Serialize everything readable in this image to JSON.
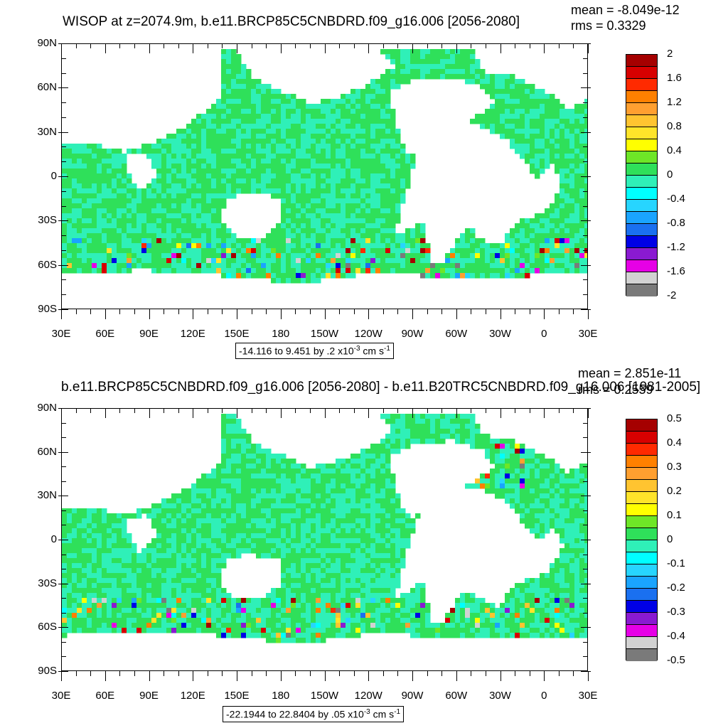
{
  "panels": [
    {
      "title": "WISOP at z=2074.9m, b.e11.BRCP85C5CNBDRD.f09_g16.006 [2056-2080]",
      "mean_text": "mean = -8.049e-12",
      "rms_text": "rms = 0.3329",
      "range_main": "-14.116 to 9.451 by .2 x10",
      "range_exp": "-3",
      "range_unit": " cm s",
      "range_unit_exp": "-1",
      "colorbar_labels": [
        "2",
        "1.6",
        "1.2",
        "0.8",
        "0.4",
        "0",
        "-0.4",
        "-0.8",
        "-1.2",
        "-1.6",
        "-2"
      ]
    },
    {
      "title": "b.e11.BRCP85C5CNBDRD.f09_g16.006 [2056-2080] - b.e11.B20TRC5CNBDRD.f09_g16.006 [1981-2005]",
      "mean_text": "mean = 2.851e-11",
      "rms_text": "rms = 0.2559",
      "range_main": "-22.1944 to 22.8404 by .05 x10",
      "range_exp": "-3",
      "range_unit": " cm s",
      "range_unit_exp": "-1",
      "colorbar_labels": [
        "0.5",
        "0.4",
        "0.3",
        "0.2",
        "0.1",
        "0",
        "-0.1",
        "-0.2",
        "-0.3",
        "-0.4",
        "-0.5"
      ]
    }
  ],
  "lat_labels": [
    "90N",
    "60N",
    "30N",
    "0",
    "30S",
    "60S",
    "90S"
  ],
  "lon_labels": [
    "30E",
    "60E",
    "90E",
    "120E",
    "150E",
    "180",
    "150W",
    "120W",
    "90W",
    "60W",
    "30W",
    "0",
    "30E"
  ],
  "colorbar_colors": [
    "#a50000",
    "#d70000",
    "#ff2a00",
    "#ff8000",
    "#ff9f30",
    "#ffc430",
    "#ffe42a",
    "#ffff00",
    "#6ee627",
    "#2fe05a",
    "#2ff0b8",
    "#00ffff",
    "#27d5ff",
    "#1aa4ff",
    "#1a70f0",
    "#0000e6",
    "#8a1ad1",
    "#e600e6",
    "#d2d2d2",
    "#7a7a7a"
  ],
  "map_colors": {
    "ocean_main": "#2fe05a",
    "ocean_alt": "#2ff0b8",
    "land": "#ffffff"
  }
}
